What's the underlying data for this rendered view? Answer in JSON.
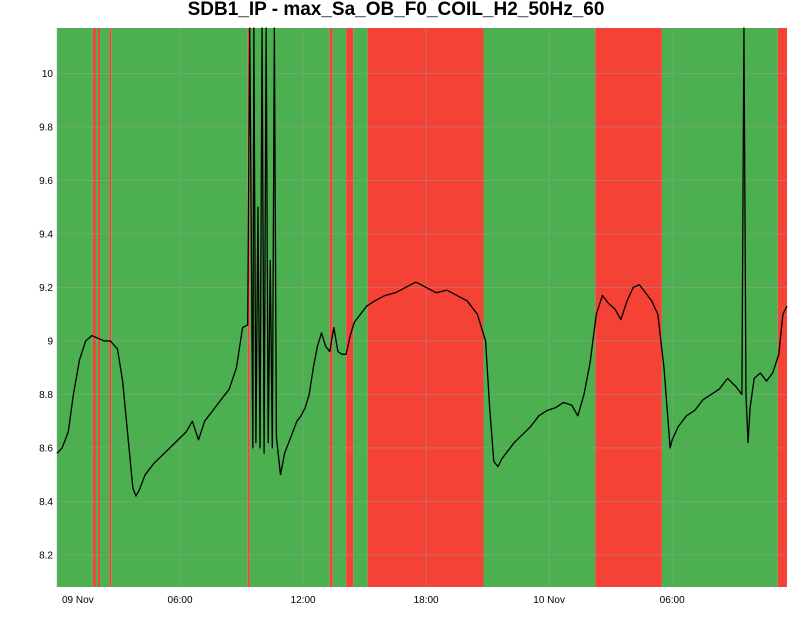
{
  "chart_data": {
    "type": "line",
    "title": "SDB1_IP - max_Sa_OB_F0_COIL_H2_50Hz_60",
    "xlabel": "",
    "ylabel": "",
    "x_range_hours": [
      0,
      35.6
    ],
    "ylim": [
      8.08,
      10.17
    ],
    "x_ticks": [
      {
        "hour": 0,
        "label": "09 Nov"
      },
      {
        "hour": 6,
        "label": "06:00"
      },
      {
        "hour": 12,
        "label": "12:00"
      },
      {
        "hour": 18,
        "label": "18:00"
      },
      {
        "hour": 24,
        "label": "10 Nov"
      },
      {
        "hour": 30,
        "label": "06:00"
      }
    ],
    "y_ticks": [
      {
        "value": 8.2,
        "label": "8.2"
      },
      {
        "value": 8.4,
        "label": "8.4"
      },
      {
        "value": 8.6,
        "label": "8.6"
      },
      {
        "value": 8.8,
        "label": "8.8"
      },
      {
        "value": 9.0,
        "label": "9"
      },
      {
        "value": 9.2,
        "label": "9.2"
      },
      {
        "value": 9.4,
        "label": "9.4"
      },
      {
        "value": 9.6,
        "label": "9.6"
      },
      {
        "value": 9.8,
        "label": "9.8"
      },
      {
        "value": 10.0,
        "label": "10"
      }
    ],
    "grid": true,
    "background_state_bands": [
      {
        "start": 0.0,
        "end": 1.75,
        "state": "green"
      },
      {
        "start": 1.75,
        "end": 1.9,
        "state": "red"
      },
      {
        "start": 1.9,
        "end": 2.0,
        "state": "green"
      },
      {
        "start": 2.0,
        "end": 2.1,
        "state": "red"
      },
      {
        "start": 2.1,
        "end": 2.55,
        "state": "green"
      },
      {
        "start": 2.55,
        "end": 2.65,
        "state": "red"
      },
      {
        "start": 2.65,
        "end": 9.3,
        "state": "green"
      },
      {
        "start": 9.3,
        "end": 9.4,
        "state": "red"
      },
      {
        "start": 9.4,
        "end": 13.3,
        "state": "green"
      },
      {
        "start": 13.3,
        "end": 13.45,
        "state": "red"
      },
      {
        "start": 13.45,
        "end": 14.1,
        "state": "green"
      },
      {
        "start": 14.1,
        "end": 14.45,
        "state": "red"
      },
      {
        "start": 14.45,
        "end": 15.15,
        "state": "green"
      },
      {
        "start": 15.15,
        "end": 20.8,
        "state": "red"
      },
      {
        "start": 20.8,
        "end": 26.25,
        "state": "green"
      },
      {
        "start": 26.25,
        "end": 29.5,
        "state": "red"
      },
      {
        "start": 29.5,
        "end": 35.15,
        "state": "green"
      },
      {
        "start": 35.15,
        "end": 35.6,
        "state": "red"
      }
    ],
    "state_colors": {
      "green": "#4caf50",
      "red": "#f44336",
      "line": "#000000",
      "grid": "#9e9e9e"
    },
    "series": [
      {
        "x": [
          0.0,
          0.25,
          0.55,
          0.8,
          1.1,
          1.4,
          1.7,
          2.0,
          2.3,
          2.6,
          2.95,
          3.2,
          3.45,
          3.7,
          3.85,
          4.0,
          4.3,
          4.7,
          5.1,
          5.5,
          5.9,
          6.3,
          6.6,
          6.9,
          7.2,
          7.6,
          8.0,
          8.4,
          8.75,
          9.05,
          9.3,
          9.4,
          9.55,
          9.6,
          9.7,
          9.8,
          9.9,
          10.0,
          10.1,
          10.2,
          10.3,
          10.4,
          10.5,
          10.6,
          10.7,
          10.9,
          11.1,
          11.3,
          11.5,
          11.7,
          11.9,
          12.1,
          12.3,
          12.5,
          12.7,
          12.9,
          13.1,
          13.3,
          13.5,
          13.7,
          13.9,
          14.1,
          14.3,
          14.5,
          14.8,
          15.1,
          15.5,
          16.0,
          16.5,
          17.0,
          17.5,
          18.0,
          18.5,
          19.0,
          19.5,
          20.0,
          20.5,
          20.9,
          21.1,
          21.3,
          21.5,
          21.7,
          21.9,
          22.3,
          22.7,
          23.1,
          23.5,
          23.9,
          24.3,
          24.7,
          25.1,
          25.4,
          25.7,
          26.0,
          26.3,
          26.6,
          26.9,
          27.2,
          27.5,
          27.8,
          28.1,
          28.4,
          28.7,
          29.0,
          29.3,
          29.6,
          29.8,
          29.9,
          30.0,
          30.3,
          30.7,
          31.1,
          31.5,
          31.9,
          32.3,
          32.7,
          33.1,
          33.4,
          33.5,
          33.6,
          33.7,
          33.8,
          34.0,
          34.3,
          34.6,
          34.9,
          35.2,
          35.4,
          35.6
        ],
        "y": [
          8.58,
          8.6,
          8.66,
          8.8,
          8.93,
          9.0,
          9.02,
          9.01,
          9.0,
          9.0,
          8.97,
          8.85,
          8.65,
          8.45,
          8.42,
          8.44,
          8.5,
          8.54,
          8.57,
          8.6,
          8.63,
          8.66,
          8.7,
          8.63,
          8.7,
          8.74,
          8.78,
          8.82,
          8.9,
          9.05,
          9.06,
          10.17,
          8.6,
          10.17,
          8.62,
          9.5,
          8.6,
          10.17,
          8.58,
          10.17,
          8.62,
          9.3,
          8.6,
          10.17,
          8.64,
          8.5,
          8.58,
          8.62,
          8.66,
          8.7,
          8.72,
          8.75,
          8.8,
          8.9,
          8.98,
          9.03,
          8.98,
          8.96,
          9.05,
          8.96,
          8.95,
          8.95,
          9.02,
          9.07,
          9.1,
          9.13,
          9.15,
          9.17,
          9.18,
          9.2,
          9.22,
          9.2,
          9.18,
          9.19,
          9.17,
          9.15,
          9.1,
          9.0,
          8.75,
          8.55,
          8.53,
          8.56,
          8.58,
          8.62,
          8.65,
          8.68,
          8.72,
          8.74,
          8.75,
          8.77,
          8.76,
          8.72,
          8.8,
          8.92,
          9.1,
          9.17,
          9.14,
          9.12,
          9.08,
          9.15,
          9.2,
          9.21,
          9.18,
          9.15,
          9.1,
          8.9,
          8.7,
          8.6,
          8.63,
          8.68,
          8.72,
          8.74,
          8.78,
          8.8,
          8.82,
          8.86,
          8.83,
          8.8,
          10.17,
          8.8,
          8.62,
          8.75,
          8.86,
          8.88,
          8.85,
          8.88,
          8.95,
          9.1,
          9.13
        ]
      }
    ]
  }
}
